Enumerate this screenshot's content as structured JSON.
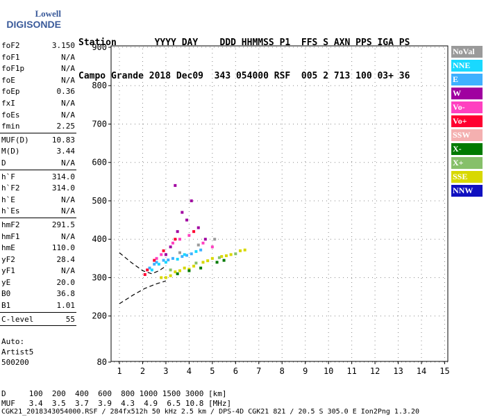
{
  "logo": {
    "line1": "Lowell",
    "line2": "DIGISONDE"
  },
  "header": {
    "row1": "Station       YYYY DAY    DDD HHMMSS P1  FFS S AXN PPS IGA PS",
    "row2": "Campo Grande 2018 Dec09  343 054000 RSF  005 2 713 100 03+ 36"
  },
  "params": [
    {
      "k": "foF2",
      "v": "3.150"
    },
    {
      "k": "foF1",
      "v": "N/A"
    },
    {
      "k": "foF1p",
      "v": "N/A"
    },
    {
      "k": "foE",
      "v": "N/A"
    },
    {
      "k": "foEp",
      "v": "0.36"
    },
    {
      "k": "fxI",
      "v": "N/A"
    },
    {
      "k": "foEs",
      "v": "N/A"
    },
    {
      "k": "fmin",
      "v": "2.25"
    },
    {
      "sep": true
    },
    {
      "k": "MUF(D)",
      "v": "10.83"
    },
    {
      "k": "M(D)",
      "v": "3.44"
    },
    {
      "k": "D",
      "v": "N/A"
    },
    {
      "sep": true
    },
    {
      "k": "h`F",
      "v": "314.0"
    },
    {
      "k": "h`F2",
      "v": "314.0"
    },
    {
      "k": "h`E",
      "v": "N/A"
    },
    {
      "k": "h`Es",
      "v": "N/A"
    },
    {
      "sep": true
    },
    {
      "k": "hmF2",
      "v": "291.5"
    },
    {
      "k": "hmF1",
      "v": "N/A"
    },
    {
      "k": "hmE",
      "v": "110.0"
    },
    {
      "k": "yF2",
      "v": "28.4"
    },
    {
      "k": "yF1",
      "v": "N/A"
    },
    {
      "k": "yE",
      "v": "20.0"
    },
    {
      "k": "B0",
      "v": "36.8"
    },
    {
      "k": "B1",
      "v": "1.01"
    },
    {
      "sep": true
    },
    {
      "k": "C-level",
      "v": "55"
    },
    {
      "sep": true
    }
  ],
  "auto": {
    "l1": "Auto:",
    "l2": "Artist5",
    "l3": "500200"
  },
  "legend": [
    {
      "label": "NoVal",
      "color": "#9a9a9a"
    },
    {
      "label": "NNE",
      "color": "#19d9ff"
    },
    {
      "label": "E",
      "color": "#3fb0ff"
    },
    {
      "label": "W",
      "color": "#a000a0"
    },
    {
      "label": "Vo-",
      "color": "#ff40c0"
    },
    {
      "label": "Vo+",
      "color": "#ff0030"
    },
    {
      "label": "SSW",
      "color": "#f4b0b0"
    },
    {
      "label": "X-",
      "color": "#007a00"
    },
    {
      "label": "X+",
      "color": "#86c06a"
    },
    {
      "label": "SSE",
      "color": "#d8d800"
    },
    {
      "label": "NNW",
      "color": "#1010c0"
    }
  ],
  "footer": {
    "row1": "D     100  200  400  600  800 1000 1500 3000 [km]",
    "row2": "MUF   3.4  3.5  3.7  3.9  4.3  4.9  6.5 10.8 [MHz]",
    "row3": "CGK21_2018343054000.RSF / 284fx512h 50 kHz 2.5 km / DPS-4D CGK21 821 / 20.5 S 305.0 E Ion2Png 1.3.20"
  },
  "chart_data": {
    "type": "scatter",
    "x_ticks": [
      1,
      2,
      3,
      4,
      5,
      6,
      7,
      8,
      9,
      10,
      11,
      12,
      13,
      14,
      15
    ],
    "y_ticks": [
      80,
      200,
      300,
      400,
      500,
      600,
      700,
      800,
      900
    ],
    "xlim": [
      0.8,
      15
    ],
    "ylim": [
      80,
      900
    ],
    "xlabel": "",
    "ylabel": "",
    "series": [
      {
        "color": "#d8d800",
        "points": [
          [
            3.0,
            300
          ],
          [
            3.4,
            315
          ],
          [
            3.8,
            325
          ],
          [
            4.2,
            330
          ],
          [
            4.6,
            340
          ],
          [
            5.0,
            350
          ],
          [
            5.4,
            355
          ],
          [
            5.8,
            360
          ],
          [
            6.2,
            370
          ],
          [
            3.2,
            305
          ],
          [
            4.0,
            322
          ],
          [
            4.8,
            344
          ],
          [
            5.6,
            357
          ],
          [
            6.4,
            372
          ],
          [
            2.8,
            300
          ],
          [
            3.6,
            318
          ]
        ]
      },
      {
        "color": "#3fb0ff",
        "points": [
          [
            2.3,
            325
          ],
          [
            2.6,
            340
          ],
          [
            2.9,
            345
          ],
          [
            3.3,
            350
          ],
          [
            3.7,
            355
          ],
          [
            4.1,
            362
          ],
          [
            4.5,
            372
          ],
          [
            2.5,
            335
          ],
          [
            3.1,
            346
          ],
          [
            3.9,
            358
          ]
        ]
      },
      {
        "color": "#19d9ff",
        "points": [
          [
            2.4,
            320
          ],
          [
            2.7,
            335
          ],
          [
            3.0,
            340
          ],
          [
            3.5,
            348
          ],
          [
            4.3,
            368
          ],
          [
            3.8,
            360
          ]
        ]
      },
      {
        "color": "#a000a0",
        "points": [
          [
            3.2,
            380
          ],
          [
            3.5,
            420
          ],
          [
            3.9,
            450
          ],
          [
            4.1,
            500
          ],
          [
            4.4,
            430
          ],
          [
            4.7,
            400
          ],
          [
            3.0,
            360
          ],
          [
            3.4,
            540
          ],
          [
            3.7,
            470
          ]
        ]
      },
      {
        "color": "#ff40c0",
        "points": [
          [
            2.8,
            360
          ],
          [
            3.3,
            390
          ],
          [
            3.6,
            400
          ],
          [
            4.0,
            410
          ],
          [
            4.6,
            390
          ],
          [
            5.0,
            380
          ],
          [
            2.6,
            350
          ]
        ]
      },
      {
        "color": "#ff0030",
        "points": [
          [
            2.2,
            320
          ],
          [
            2.5,
            345
          ],
          [
            2.9,
            370
          ],
          [
            3.4,
            400
          ],
          [
            4.2,
            420
          ],
          [
            2.1,
            308
          ]
        ]
      },
      {
        "color": "#007a00",
        "points": [
          [
            3.5,
            310
          ],
          [
            4.5,
            325
          ],
          [
            5.5,
            345
          ],
          [
            5.2,
            340
          ],
          [
            4.0,
            318
          ]
        ]
      },
      {
        "color": "#86c06a",
        "points": [
          [
            3.2,
            320
          ],
          [
            4.3,
            338
          ],
          [
            5.3,
            352
          ],
          [
            6.0,
            362
          ]
        ]
      },
      {
        "color": "#9a9a9a",
        "points": [
          [
            3.6,
            365
          ],
          [
            4.4,
            385
          ],
          [
            5.1,
            400
          ]
        ]
      }
    ],
    "fit_curves": [
      {
        "name": "F2 virtual height",
        "points": [
          [
            1.0,
            365
          ],
          [
            1.5,
            340
          ],
          [
            2.0,
            318
          ],
          [
            2.4,
            310
          ],
          [
            2.7,
            318
          ],
          [
            3.0,
            330
          ]
        ]
      },
      {
        "name": "F2 profile",
        "points": [
          [
            1.0,
            232
          ],
          [
            1.6,
            255
          ],
          [
            2.1,
            272
          ],
          [
            2.6,
            284
          ],
          [
            3.0,
            291.5
          ]
        ]
      }
    ]
  }
}
